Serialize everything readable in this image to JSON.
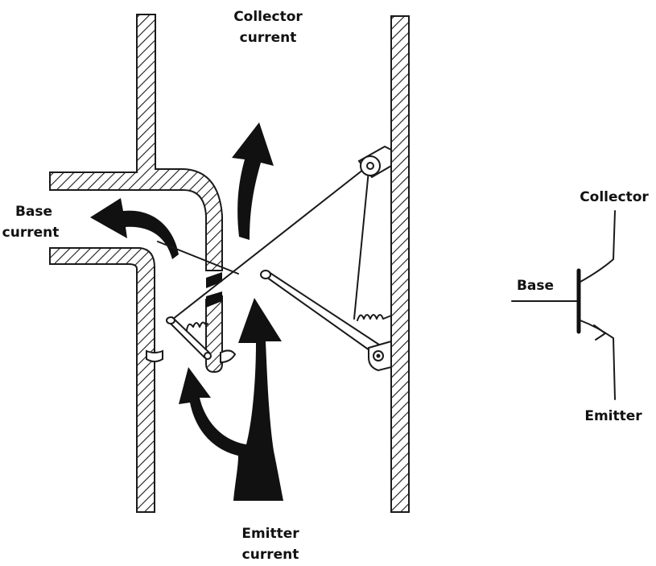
{
  "labels": {
    "collector_current_1": "Collector",
    "collector_current_2": "current",
    "base_current_1": "Base",
    "base_current_2": "current",
    "emitter_current_1": "Emitter",
    "emitter_current_2": "current"
  },
  "symbol": {
    "collector": "Collector",
    "base": "Base",
    "emitter": "Emitter"
  },
  "colors": {
    "ink": "#111111",
    "paper": "#ffffff"
  }
}
